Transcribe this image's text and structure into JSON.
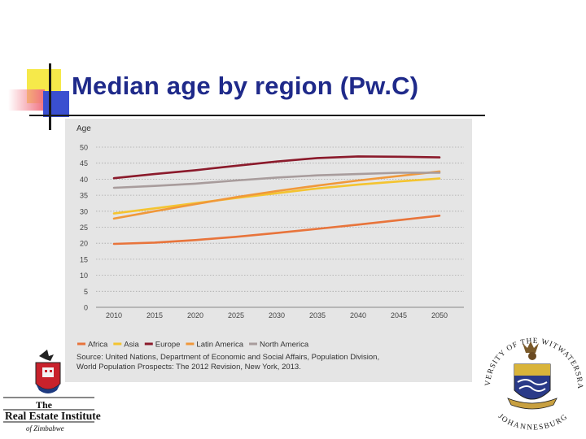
{
  "slide": {
    "title": "Median age by region (Pw.C)"
  },
  "chart_data": {
    "type": "line",
    "ylabel": "Age",
    "xlabel": "",
    "x": [
      2010,
      2015,
      2020,
      2025,
      2030,
      2035,
      2040,
      2045,
      2050
    ],
    "yticks": [
      0,
      5,
      10,
      15,
      20,
      25,
      30,
      35,
      40,
      45,
      50
    ],
    "ylim": [
      0,
      50
    ],
    "grid": true,
    "legend_position": "bottom",
    "series": [
      {
        "name": "Africa",
        "color": "#e8743b",
        "values": [
          19.8,
          20.2,
          21.0,
          22.0,
          23.2,
          24.5,
          25.8,
          27.2,
          28.6
        ]
      },
      {
        "name": "Asia",
        "color": "#f4c430",
        "values": [
          29.3,
          30.9,
          32.5,
          34.1,
          35.6,
          37.1,
          38.3,
          39.3,
          40.2
        ]
      },
      {
        "name": "Europe",
        "color": "#8b1a2b",
        "values": [
          40.3,
          41.6,
          42.8,
          44.2,
          45.5,
          46.6,
          47.1,
          47.0,
          46.8
        ]
      },
      {
        "name": "Latin America",
        "color": "#f0983a",
        "values": [
          27.7,
          30.0,
          32.2,
          34.4,
          36.3,
          38.0,
          39.6,
          41.0,
          42.4
        ]
      },
      {
        "name": "North America",
        "color": "#a89c9c",
        "values": [
          37.3,
          37.9,
          38.6,
          39.6,
          40.5,
          41.2,
          41.6,
          42.0,
          42.0
        ]
      }
    ]
  },
  "source": {
    "line1": "Source: United Nations, Department of Economic and Social Affairs, Population Division,",
    "line2": "World Population Prospects: The 2012 Revision, New York, 2013."
  },
  "logos": {
    "left": {
      "line1": "The",
      "line2": "Real Estate Institute",
      "line3": "of Zimbabwe"
    },
    "right": {
      "arc_text": "UNIVERSITY OF THE WITWATERSRAND",
      "bottom_text": "JOHANNESBURG"
    }
  }
}
